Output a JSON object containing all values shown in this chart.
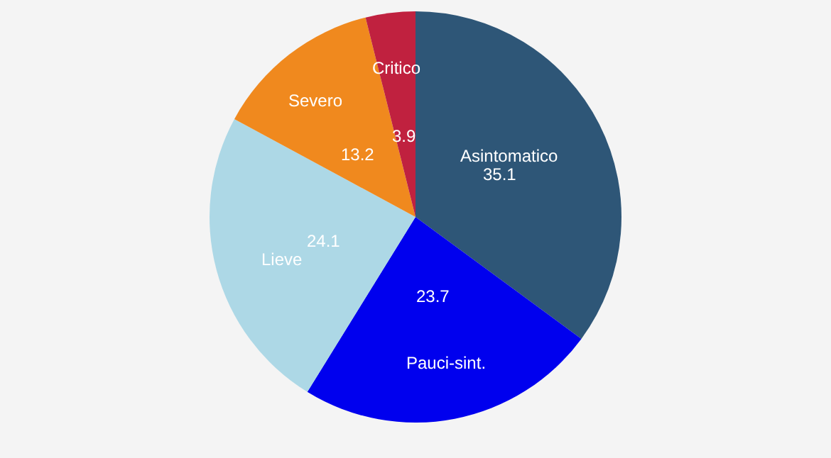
{
  "chart_data": {
    "type": "pie",
    "categories": [
      "Asintomatico",
      "Pauci-sint.",
      "Lieve",
      "Severo",
      "Critico"
    ],
    "values": [
      35.1,
      23.7,
      24.1,
      13.2,
      3.9
    ],
    "colors": [
      "#2e5677",
      "#0000ee",
      "#add8e6",
      "#f0891e",
      "#c0213f"
    ],
    "data_labels": true,
    "legend": false
  }
}
